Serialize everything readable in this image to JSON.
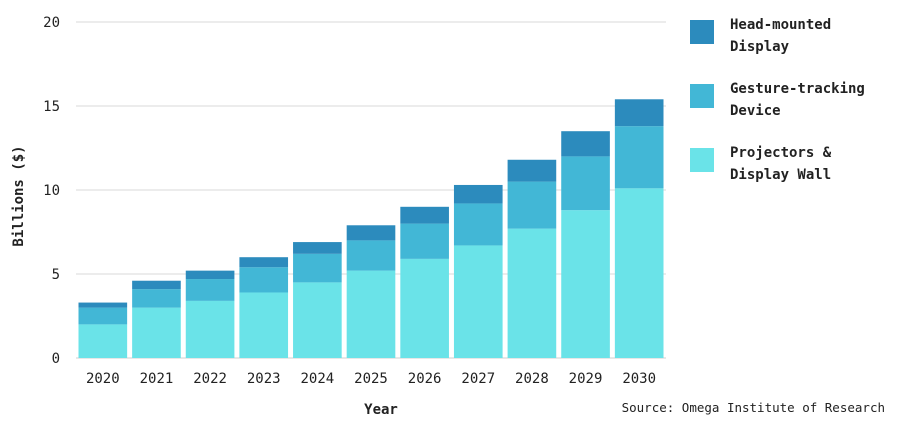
{
  "chart_data": {
    "type": "bar",
    "stacked": true,
    "categories": [
      "2020",
      "2021",
      "2022",
      "2023",
      "2024",
      "2025",
      "2026",
      "2027",
      "2028",
      "2029",
      "2030"
    ],
    "series": [
      {
        "name": "Projectors & Display Wall",
        "color": "#6ae3e8",
        "values": [
          2.0,
          3.0,
          3.4,
          3.9,
          4.5,
          5.2,
          5.9,
          6.7,
          7.7,
          8.8,
          10.1
        ]
      },
      {
        "name": "Gesture-tracking Device",
        "color": "#42b7d6",
        "values": [
          1.0,
          1.1,
          1.3,
          1.5,
          1.7,
          1.8,
          2.1,
          2.5,
          2.8,
          3.2,
          3.7
        ]
      },
      {
        "name": "Head-mounted Display",
        "color": "#2c8bbd",
        "values": [
          0.3,
          0.5,
          0.5,
          0.6,
          0.7,
          0.9,
          1.0,
          1.1,
          1.3,
          1.5,
          1.6
        ]
      }
    ],
    "xlabel": "Year",
    "ylabel": "Billions ($)",
    "ylim": [
      0,
      20
    ],
    "yticks": [
      0,
      5,
      10,
      15,
      20
    ],
    "grid": true,
    "legend_position": "right",
    "source": "Source: Omega Institute of Research"
  }
}
